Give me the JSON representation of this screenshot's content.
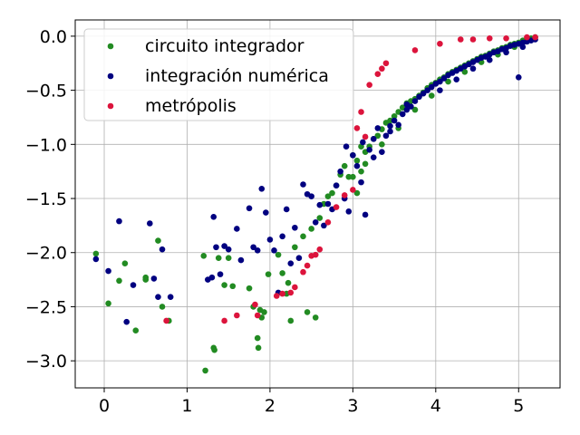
{
  "chart_data": {
    "type": "scatter",
    "title": "",
    "xlabel": "",
    "ylabel": "",
    "xlim": [
      -0.35,
      5.5
    ],
    "ylim": [
      -3.25,
      0.15
    ],
    "xticks": [
      0,
      1,
      2,
      3,
      4,
      5
    ],
    "xtick_labels": [
      "0",
      "1",
      "2",
      "3",
      "4",
      "5"
    ],
    "yticks": [
      0.0,
      -0.5,
      -1.0,
      -1.5,
      -2.0,
      -2.5,
      -3.0
    ],
    "ytick_labels": [
      "0.0",
      "−0.5",
      "−1.0",
      "−1.5",
      "−2.0",
      "−2.5",
      "−3.0"
    ],
    "grid": true,
    "legend_position": "top-left",
    "series": [
      {
        "name": "circuito integrador",
        "color": "#228b22",
        "points": [
          [
            -0.1,
            -2.01
          ],
          [
            0.05,
            -2.47
          ],
          [
            0.18,
            -2.26
          ],
          [
            0.25,
            -2.1
          ],
          [
            0.38,
            -2.72
          ],
          [
            0.5,
            -2.23
          ],
          [
            0.5,
            -2.25
          ],
          [
            0.65,
            -1.89
          ],
          [
            0.7,
            -2.5
          ],
          [
            0.78,
            -2.63
          ],
          [
            1.2,
            -2.03
          ],
          [
            1.22,
            -3.09
          ],
          [
            1.32,
            -2.88
          ],
          [
            1.33,
            -2.9
          ],
          [
            1.38,
            -2.05
          ],
          [
            1.45,
            -2.3
          ],
          [
            1.5,
            -2.05
          ],
          [
            1.55,
            -2.31
          ],
          [
            1.75,
            -2.33
          ],
          [
            1.8,
            -2.5
          ],
          [
            1.85,
            -2.79
          ],
          [
            1.86,
            -2.88
          ],
          [
            1.88,
            -2.53
          ],
          [
            1.9,
            -2.6
          ],
          [
            1.93,
            -2.55
          ],
          [
            1.98,
            -2.2
          ],
          [
            2.1,
            -2.02
          ],
          [
            2.15,
            -2.19
          ],
          [
            2.2,
            -2.38
          ],
          [
            2.22,
            -2.28
          ],
          [
            2.25,
            -2.63
          ],
          [
            2.3,
            -1.95
          ],
          [
            2.4,
            -1.85
          ],
          [
            2.45,
            -2.55
          ],
          [
            2.5,
            -1.78
          ],
          [
            2.55,
            -2.6
          ],
          [
            2.6,
            -1.68
          ],
          [
            2.65,
            -1.55
          ],
          [
            2.7,
            -1.48
          ],
          [
            2.75,
            -1.45
          ],
          [
            2.8,
            -1.38
          ],
          [
            2.85,
            -1.28
          ],
          [
            2.9,
            -1.2
          ],
          [
            2.95,
            -1.3
          ],
          [
            3.0,
            -1.1
          ],
          [
            3.05,
            -1.15
          ],
          [
            3.1,
            -1.02
          ],
          [
            3.15,
            -1.07
          ],
          [
            3.2,
            -1.02
          ],
          [
            3.25,
            -0.95
          ],
          [
            3.3,
            -0.92
          ],
          [
            3.35,
            -0.86
          ],
          [
            3.4,
            -0.8
          ],
          [
            3.45,
            -0.78
          ],
          [
            3.5,
            -0.74
          ],
          [
            3.55,
            -0.7
          ],
          [
            3.6,
            -0.66
          ],
          [
            3.65,
            -0.62
          ],
          [
            3.7,
            -0.6
          ],
          [
            3.75,
            -0.58
          ],
          [
            3.8,
            -0.55
          ],
          [
            3.85,
            -0.52
          ],
          [
            3.9,
            -0.48
          ],
          [
            3.95,
            -0.45
          ],
          [
            4.0,
            -0.43
          ],
          [
            4.05,
            -0.4
          ],
          [
            4.1,
            -0.38
          ],
          [
            4.15,
            -0.35
          ],
          [
            4.2,
            -0.33
          ],
          [
            4.25,
            -0.31
          ],
          [
            4.3,
            -0.29
          ],
          [
            4.35,
            -0.27
          ],
          [
            4.4,
            -0.25
          ],
          [
            4.45,
            -0.23
          ],
          [
            4.5,
            -0.21
          ],
          [
            4.55,
            -0.19
          ],
          [
            4.6,
            -0.18
          ],
          [
            4.65,
            -0.16
          ],
          [
            4.7,
            -0.14
          ],
          [
            4.75,
            -0.13
          ],
          [
            4.8,
            -0.11
          ],
          [
            4.85,
            -0.1
          ],
          [
            4.9,
            -0.08
          ],
          [
            4.95,
            -0.07
          ],
          [
            5.0,
            -0.06
          ],
          [
            5.05,
            -0.04
          ],
          [
            5.1,
            -0.03
          ],
          [
            5.15,
            -0.02
          ],
          [
            5.2,
            -0.01
          ],
          [
            3.0,
            -1.3
          ],
          [
            3.05,
            -1.45
          ],
          [
            3.1,
            -1.25
          ],
          [
            3.15,
            -1.18
          ],
          [
            3.35,
            -1.0
          ],
          [
            3.55,
            -0.85
          ],
          [
            3.75,
            -0.68
          ],
          [
            3.95,
            -0.55
          ],
          [
            4.15,
            -0.42
          ],
          [
            4.35,
            -0.33
          ],
          [
            4.55,
            -0.24
          ],
          [
            4.75,
            -0.17
          ],
          [
            4.95,
            -0.1
          ],
          [
            5.1,
            -0.05
          ]
        ]
      },
      {
        "name": "integración numérica",
        "color": "#000080",
        "points": [
          [
            -0.1,
            -2.06
          ],
          [
            0.05,
            -2.17
          ],
          [
            0.18,
            -1.71
          ],
          [
            0.27,
            -2.64
          ],
          [
            0.35,
            -2.3
          ],
          [
            0.55,
            -1.73
          ],
          [
            0.6,
            -2.24
          ],
          [
            0.65,
            -2.41
          ],
          [
            0.7,
            -1.97
          ],
          [
            0.8,
            -2.41
          ],
          [
            1.25,
            -2.25
          ],
          [
            1.3,
            -2.23
          ],
          [
            1.32,
            -1.67
          ],
          [
            1.35,
            -1.95
          ],
          [
            1.4,
            -2.2
          ],
          [
            1.45,
            -1.94
          ],
          [
            1.5,
            -1.97
          ],
          [
            1.6,
            -1.78
          ],
          [
            1.65,
            -2.07
          ],
          [
            1.75,
            -1.59
          ],
          [
            1.8,
            -1.95
          ],
          [
            1.85,
            -1.98
          ],
          [
            1.9,
            -1.41
          ],
          [
            1.95,
            -1.63
          ],
          [
            2.0,
            -1.88
          ],
          [
            2.05,
            -1.98
          ],
          [
            2.1,
            -2.37
          ],
          [
            2.15,
            -1.85
          ],
          [
            2.2,
            -1.6
          ],
          [
            2.25,
            -2.1
          ],
          [
            2.3,
            -1.77
          ],
          [
            2.35,
            -2.05
          ],
          [
            2.4,
            -1.37
          ],
          [
            2.45,
            -1.46
          ],
          [
            2.5,
            -1.48
          ],
          [
            2.55,
            -1.72
          ],
          [
            2.6,
            -1.56
          ],
          [
            2.65,
            -1.75
          ],
          [
            2.7,
            -1.55
          ],
          [
            2.75,
            -1.6
          ],
          [
            2.8,
            -1.38
          ],
          [
            2.85,
            -1.25
          ],
          [
            2.9,
            -1.5
          ],
          [
            2.95,
            -1.62
          ],
          [
            3.0,
            -1.1
          ],
          [
            3.05,
            -1.2
          ],
          [
            3.1,
            -1.35
          ],
          [
            3.15,
            -1.65
          ],
          [
            3.2,
            -1.05
          ],
          [
            3.25,
            -0.95
          ],
          [
            3.3,
            -0.85
          ],
          [
            3.35,
            -1.07
          ],
          [
            3.4,
            -0.92
          ],
          [
            3.45,
            -0.88
          ],
          [
            3.5,
            -0.78
          ],
          [
            3.55,
            -0.82
          ],
          [
            3.6,
            -0.72
          ],
          [
            3.65,
            -0.68
          ],
          [
            3.7,
            -0.65
          ],
          [
            3.75,
            -0.6
          ],
          [
            3.8,
            -0.56
          ],
          [
            3.85,
            -0.53
          ],
          [
            3.9,
            -0.5
          ],
          [
            3.95,
            -0.47
          ],
          [
            4.0,
            -0.44
          ],
          [
            4.05,
            -0.42
          ],
          [
            4.1,
            -0.39
          ],
          [
            4.15,
            -0.36
          ],
          [
            4.2,
            -0.34
          ],
          [
            4.25,
            -0.32
          ],
          [
            4.3,
            -0.3
          ],
          [
            4.35,
            -0.28
          ],
          [
            4.4,
            -0.26
          ],
          [
            4.45,
            -0.24
          ],
          [
            4.5,
            -0.22
          ],
          [
            4.55,
            -0.2
          ],
          [
            4.6,
            -0.19
          ],
          [
            4.65,
            -0.17
          ],
          [
            4.7,
            -0.15
          ],
          [
            4.75,
            -0.14
          ],
          [
            4.8,
            -0.12
          ],
          [
            4.85,
            -0.11
          ],
          [
            4.9,
            -0.09
          ],
          [
            4.95,
            -0.08
          ],
          [
            5.0,
            -0.07
          ],
          [
            5.05,
            -0.06
          ],
          [
            5.1,
            -0.05
          ],
          [
            5.15,
            -0.04
          ],
          [
            5.2,
            -0.03
          ],
          [
            4.05,
            -0.5
          ],
          [
            4.25,
            -0.4
          ],
          [
            4.45,
            -0.3
          ],
          [
            4.65,
            -0.22
          ],
          [
            4.85,
            -0.15
          ],
          [
            5.05,
            -0.1
          ],
          [
            5.0,
            -0.38
          ],
          [
            3.45,
            -0.83
          ],
          [
            3.65,
            -0.63
          ],
          [
            3.25,
            -1.12
          ],
          [
            2.92,
            -1.02
          ],
          [
            3.12,
            -0.98
          ]
        ]
      },
      {
        "name": "metrópolis",
        "color": "#dc143c",
        "points": [
          [
            0.75,
            -2.63
          ],
          [
            1.45,
            -2.63
          ],
          [
            1.6,
            -2.58
          ],
          [
            1.82,
            -2.48
          ],
          [
            1.85,
            -2.58
          ],
          [
            2.08,
            -2.4
          ],
          [
            2.15,
            -2.38
          ],
          [
            2.25,
            -2.37
          ],
          [
            2.3,
            -2.32
          ],
          [
            2.4,
            -2.18
          ],
          [
            2.45,
            -2.12
          ],
          [
            2.5,
            -2.03
          ],
          [
            2.55,
            -2.02
          ],
          [
            2.6,
            -1.97
          ],
          [
            2.7,
            -1.72
          ],
          [
            2.8,
            -1.58
          ],
          [
            2.9,
            -1.47
          ],
          [
            3.0,
            -1.42
          ],
          [
            3.05,
            -0.85
          ],
          [
            3.1,
            -0.7
          ],
          [
            3.15,
            -0.93
          ],
          [
            3.2,
            -0.45
          ],
          [
            3.3,
            -0.35
          ],
          [
            3.35,
            -0.3
          ],
          [
            3.4,
            -0.25
          ],
          [
            3.75,
            -0.13
          ],
          [
            4.05,
            -0.07
          ],
          [
            4.3,
            -0.03
          ],
          [
            4.45,
            -0.03
          ],
          [
            4.65,
            -0.02
          ],
          [
            4.85,
            -0.02
          ],
          [
            5.1,
            -0.01
          ],
          [
            5.2,
            -0.01
          ]
        ]
      }
    ]
  }
}
